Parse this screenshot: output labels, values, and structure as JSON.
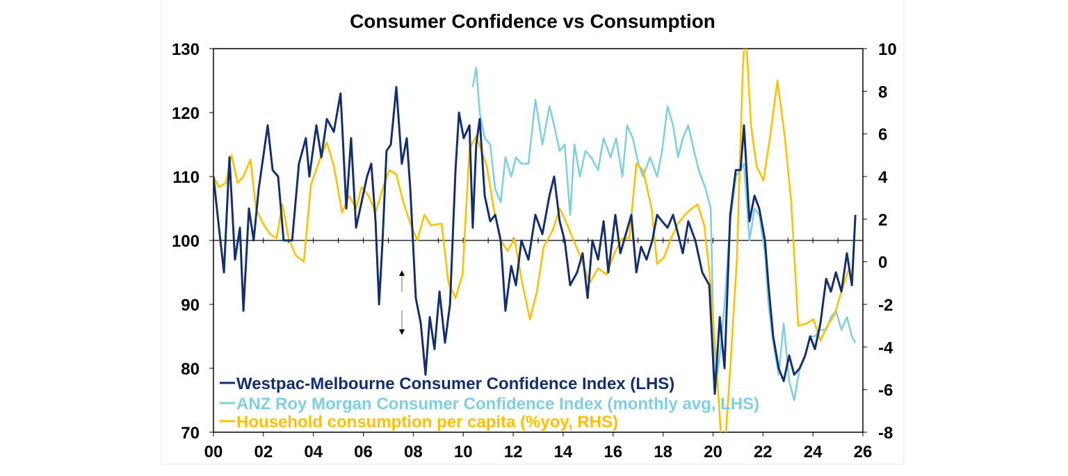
{
  "chart_data": {
    "type": "line",
    "title": "Consumer Confidence vs Consumption",
    "xlim": [
      2000,
      2026
    ],
    "x_ticks": [
      2000,
      2002,
      2004,
      2006,
      2008,
      2010,
      2012,
      2014,
      2016,
      2018,
      2020,
      2022,
      2024,
      2026
    ],
    "x_tick_labels": [
      "00",
      "02",
      "04",
      "06",
      "08",
      "10",
      "12",
      "14",
      "16",
      "18",
      "20",
      "22",
      "24",
      "26"
    ],
    "ylim_left": [
      70,
      130
    ],
    "y_ticks_left": [
      130,
      120,
      110,
      100,
      90,
      80,
      70
    ],
    "ylim_right": [
      -8,
      10
    ],
    "y_ticks_right": [
      10,
      8,
      6,
      4,
      2,
      0,
      -2,
      -4,
      -6,
      -8
    ],
    "reference_line_left": 100,
    "grid": false,
    "legend_placement": "bottom-left",
    "series": [
      {
        "name": "Westpac-Melbourne Consumer Confidence Index (LHS)",
        "axis": "left",
        "color": "#142f6e",
        "x": [
          2000.0,
          2000.22,
          2000.42,
          2000.64,
          2000.86,
          2001.06,
          2001.2,
          2001.42,
          2001.61,
          2001.81,
          2002.17,
          2002.37,
          2002.59,
          2002.81,
          2003.15,
          2003.42,
          2003.7,
          2003.84,
          2004.12,
          2004.32,
          2004.54,
          2004.82,
          2005.09,
          2005.32,
          2005.51,
          2005.71,
          2005.93,
          2006.15,
          2006.32,
          2006.49,
          2006.63,
          2006.77,
          2006.93,
          2007.1,
          2007.32,
          2007.54,
          2007.74,
          2007.88,
          2008.1,
          2008.3,
          2008.49,
          2008.66,
          2008.85,
          2009.05,
          2009.27,
          2009.47,
          2009.69,
          2009.83,
          2010.02,
          2010.25,
          2010.38,
          2010.52,
          2010.66,
          2010.86,
          2011.08,
          2011.28,
          2011.5,
          2011.69,
          2011.92,
          2012.11,
          2012.33,
          2012.61,
          2012.89,
          2013.17,
          2013.45,
          2013.64,
          2013.86,
          2014.06,
          2014.28,
          2014.56,
          2014.78,
          2014.98,
          2015.17,
          2015.4,
          2015.62,
          2015.81,
          2016.09,
          2016.29,
          2016.51,
          2016.73,
          2016.93,
          2017.12,
          2017.34,
          2017.57,
          2017.76,
          2017.96,
          2018.18,
          2018.4,
          2018.6,
          2018.79,
          2019.01,
          2019.29,
          2019.57,
          2019.85,
          2020.07,
          2020.27,
          2020.46,
          2020.69,
          2020.91,
          2021.1,
          2021.24,
          2021.46,
          2021.66,
          2021.85,
          2022.08,
          2022.22,
          2022.41,
          2022.63,
          2022.83,
          2023.05,
          2023.25,
          2023.47,
          2023.69,
          2023.89,
          2024.08,
          2024.3,
          2024.53,
          2024.72,
          2024.92,
          2025.14,
          2025.36,
          2025.56,
          2025.7
        ],
        "values": [
          110,
          102,
          95,
          113,
          97,
          102,
          89,
          105,
          100,
          108,
          118,
          111,
          110,
          100,
          100,
          112,
          116,
          110,
          118,
          113,
          119,
          117,
          123,
          105,
          116,
          102,
          106,
          110,
          112,
          103,
          90,
          100,
          114,
          115,
          124,
          112,
          116,
          108,
          91,
          87,
          79,
          88,
          83,
          92,
          84,
          90,
          111,
          120,
          116,
          118,
          102,
          115,
          119,
          107,
          103,
          104,
          100,
          89,
          96,
          93,
          100,
          97,
          104,
          101,
          107,
          110,
          103,
          100,
          93,
          95,
          98,
          91,
          100,
          97,
          103,
          95,
          104,
          98,
          101,
          104,
          95,
          99,
          97,
          100,
          104,
          103,
          102,
          104,
          101,
          98,
          103,
          100,
          95,
          93,
          76,
          88,
          80,
          104,
          111,
          111,
          118,
          103,
          107,
          105,
          100,
          93,
          85,
          80,
          78,
          82,
          79,
          80,
          82,
          85,
          83,
          87,
          94,
          92,
          95,
          92,
          98,
          93,
          104
        ]
      },
      {
        "name": "ANZ Roy Morgan Consumer Confidence Index (monthly avg, LHS)",
        "axis": "left",
        "color": "#7fcfe0",
        "x": [
          2010.38,
          2010.52,
          2010.66,
          2010.86,
          2011.08,
          2011.28,
          2011.5,
          2011.69,
          2011.92,
          2012.11,
          2012.33,
          2012.61,
          2012.89,
          2013.17,
          2013.45,
          2013.64,
          2013.86,
          2014.06,
          2014.28,
          2014.45,
          2014.67,
          2014.89,
          2015.12,
          2015.4,
          2015.62,
          2015.9,
          2016.12,
          2016.37,
          2016.56,
          2016.79,
          2017.01,
          2017.2,
          2017.48,
          2017.76,
          2017.96,
          2018.18,
          2018.4,
          2018.6,
          2018.79,
          2019.01,
          2019.24,
          2019.43,
          2019.71,
          2019.91,
          2020.07,
          2020.27,
          2020.46,
          2020.69,
          2020.91,
          2021.1,
          2021.24,
          2021.46,
          2021.66,
          2021.85,
          2022.08,
          2022.22,
          2022.41,
          2022.63,
          2022.83,
          2023.05,
          2023.25,
          2023.47,
          2023.69,
          2023.89,
          2024.08,
          2024.3,
          2024.53,
          2024.72,
          2024.92,
          2025.14,
          2025.36,
          2025.56,
          2025.7
        ],
        "values": [
          124,
          127,
          120,
          116,
          115,
          108,
          106,
          113,
          110,
          113,
          112,
          112,
          122,
          115,
          121,
          118,
          114,
          115,
          104,
          115,
          110,
          114,
          113,
          111,
          116,
          113,
          116,
          110,
          118,
          116,
          112,
          110,
          113,
          110,
          114,
          121,
          118,
          113,
          116,
          118,
          114,
          111,
          108,
          105,
          76,
          82,
          90,
          103,
          110,
          111,
          112,
          100,
          105,
          104,
          98,
          90,
          84,
          79,
          87,
          78,
          75,
          80,
          82,
          85,
          85,
          86,
          86,
          88,
          89,
          86,
          88,
          85,
          84
        ]
      },
      {
        "name": "Household consumption per capita (%yoy, RHS)",
        "axis": "right",
        "color": "#ffc000",
        "x": [
          2000.0,
          2000.22,
          2000.5,
          2000.72,
          2000.97,
          2001.2,
          2001.48,
          2001.7,
          2001.98,
          2002.26,
          2002.53,
          2002.76,
          2003.01,
          2003.29,
          2003.62,
          2003.9,
          2004.26,
          2004.54,
          2004.82,
          2005.15,
          2005.43,
          2005.71,
          2005.93,
          2006.21,
          2006.49,
          2006.77,
          2007.04,
          2007.32,
          2007.6,
          2007.88,
          2008.16,
          2008.44,
          2008.71,
          2009.13,
          2009.41,
          2009.69,
          2009.97,
          2010.25,
          2010.52,
          2010.94,
          2011.22,
          2011.5,
          2011.78,
          2012.05,
          2012.33,
          2012.67,
          2012.95,
          2013.22,
          2013.59,
          2013.86,
          2014.14,
          2014.42,
          2014.7,
          2015.06,
          2015.4,
          2015.73,
          2016.09,
          2016.37,
          2016.65,
          2016.93,
          2017.2,
          2017.54,
          2017.76,
          2018.04,
          2018.32,
          2018.6,
          2018.88,
          2019.15,
          2019.38,
          2019.65,
          2019.85,
          2020.13,
          2020.41,
          2020.69,
          2020.96,
          2021.19,
          2021.3,
          2021.52,
          2021.74,
          2022.02,
          2022.3,
          2022.58,
          2022.86,
          2023.13,
          2023.41,
          2023.75,
          2024.02,
          2024.3,
          2024.58,
          2024.86,
          2025.14,
          2025.42
        ],
        "values": [
          4.0,
          3.5,
          3.7,
          5.0,
          3.7,
          4.0,
          4.8,
          2.5,
          1.8,
          1.3,
          1.1,
          2.7,
          1.1,
          0.3,
          0.0,
          3.6,
          4.8,
          5.6,
          4.5,
          2.3,
          3.1,
          2.5,
          3.5,
          3.1,
          2.3,
          3.4,
          4.3,
          4.1,
          2.8,
          1.8,
          1.0,
          2.2,
          1.7,
          1.8,
          -1.0,
          -1.7,
          -0.6,
          5.3,
          5.9,
          4.5,
          2.5,
          1.0,
          0.5,
          1.1,
          -0.8,
          -2.7,
          -1.4,
          0.7,
          1.5,
          2.5,
          1.8,
          1.0,
          0.2,
          -1.0,
          -0.3,
          -0.6,
          0.5,
          1.1,
          1.1,
          4.6,
          4.3,
          2.5,
          -0.1,
          0.2,
          1.1,
          1.8,
          2.2,
          2.5,
          2.7,
          1.7,
          -0.4,
          -4.7,
          -9.9,
          -5.0,
          0.2,
          9.0,
          11.0,
          6.4,
          4.5,
          3.8,
          6.0,
          8.5,
          6.0,
          2.8,
          -3.0,
          -2.9,
          -2.7,
          -3.7,
          -3.0,
          -2.5,
          -1.4,
          -0.4
        ]
      }
    ]
  }
}
